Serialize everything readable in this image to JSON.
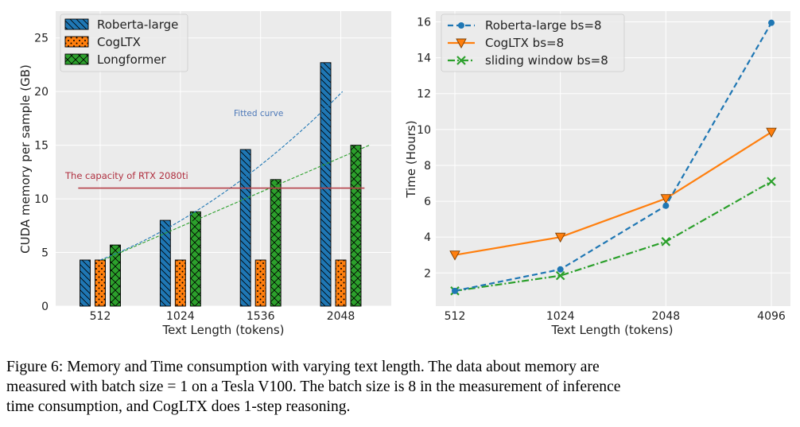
{
  "caption": {
    "lines": [
      "Figure 6: Memory and Time consumption with varying text length. The data about memory are",
      "measured with batch size = 1 on a Tesla V100. The batch size is 8 in the measurement of inference",
      "time consumption, and CogLTX does 1-step reasoning."
    ]
  },
  "colors": {
    "blue": "#1f77b4",
    "orange": "#ff7f0e",
    "green": "#2ca02c",
    "red_line": "#b5424a",
    "annotation_blue": "#4c78b8",
    "annotation_red": "#b03040"
  },
  "chart_data": [
    {
      "type": "bar",
      "title": "",
      "xlabel": "Text Length (tokens)",
      "ylabel": "CUDA memory per sample (GB)",
      "categories": [
        "512",
        "1024",
        "1536",
        "2048"
      ],
      "series": [
        {
          "name": "Roberta-large",
          "values": [
            4.3,
            8.0,
            14.6,
            22.7
          ],
          "hatch": "backslash"
        },
        {
          "name": "CogLTX",
          "values": [
            4.3,
            4.3,
            4.3,
            4.3
          ],
          "hatch": "dots"
        },
        {
          "name": "Longformer",
          "values": [
            5.7,
            8.8,
            11.8,
            15.0
          ],
          "hatch": "cross"
        }
      ],
      "ylim": [
        0,
        27.5
      ],
      "yticks": [
        0,
        5,
        10,
        15,
        20,
        25
      ],
      "legend": "top-left",
      "grid": true,
      "reference_line": {
        "value": 11,
        "x_start": 0.5,
        "x_end": 4.5,
        "label": "The capacity of RTX 2080ti"
      },
      "fitted_curves": [
        {
          "label": "Fitted curve",
          "kind": "quadratic",
          "x_start": 0,
          "x_end": 4.65,
          "y_start": 4.3
        },
        {
          "label": "",
          "kind": "linear",
          "x_start": 0,
          "x_end": 5.1,
          "y_start": 4.3
        }
      ]
    },
    {
      "type": "line",
      "title": "",
      "xlabel": "Text Length (tokens)",
      "ylabel": "Time (Hours)",
      "categories": [
        "512",
        "1024",
        "2048",
        "4096"
      ],
      "series": [
        {
          "name": "Roberta-large bs=8",
          "values": [
            1.0,
            2.2,
            5.75,
            15.95
          ],
          "style": "dashed",
          "marker": "circle"
        },
        {
          "name": "CogLTX bs=8",
          "values": [
            3.0,
            4.0,
            6.15,
            9.85
          ],
          "style": "solid",
          "marker": "triangle-down"
        },
        {
          "name": "sliding window bs=8",
          "values": [
            1.0,
            1.85,
            3.75,
            7.1
          ],
          "style": "dashdot",
          "marker": "x"
        }
      ],
      "ylim": [
        0.15,
        16.6
      ],
      "yticks": [
        2,
        4,
        6,
        8,
        10,
        12,
        14,
        16
      ],
      "legend": "top-left",
      "grid": true
    }
  ]
}
